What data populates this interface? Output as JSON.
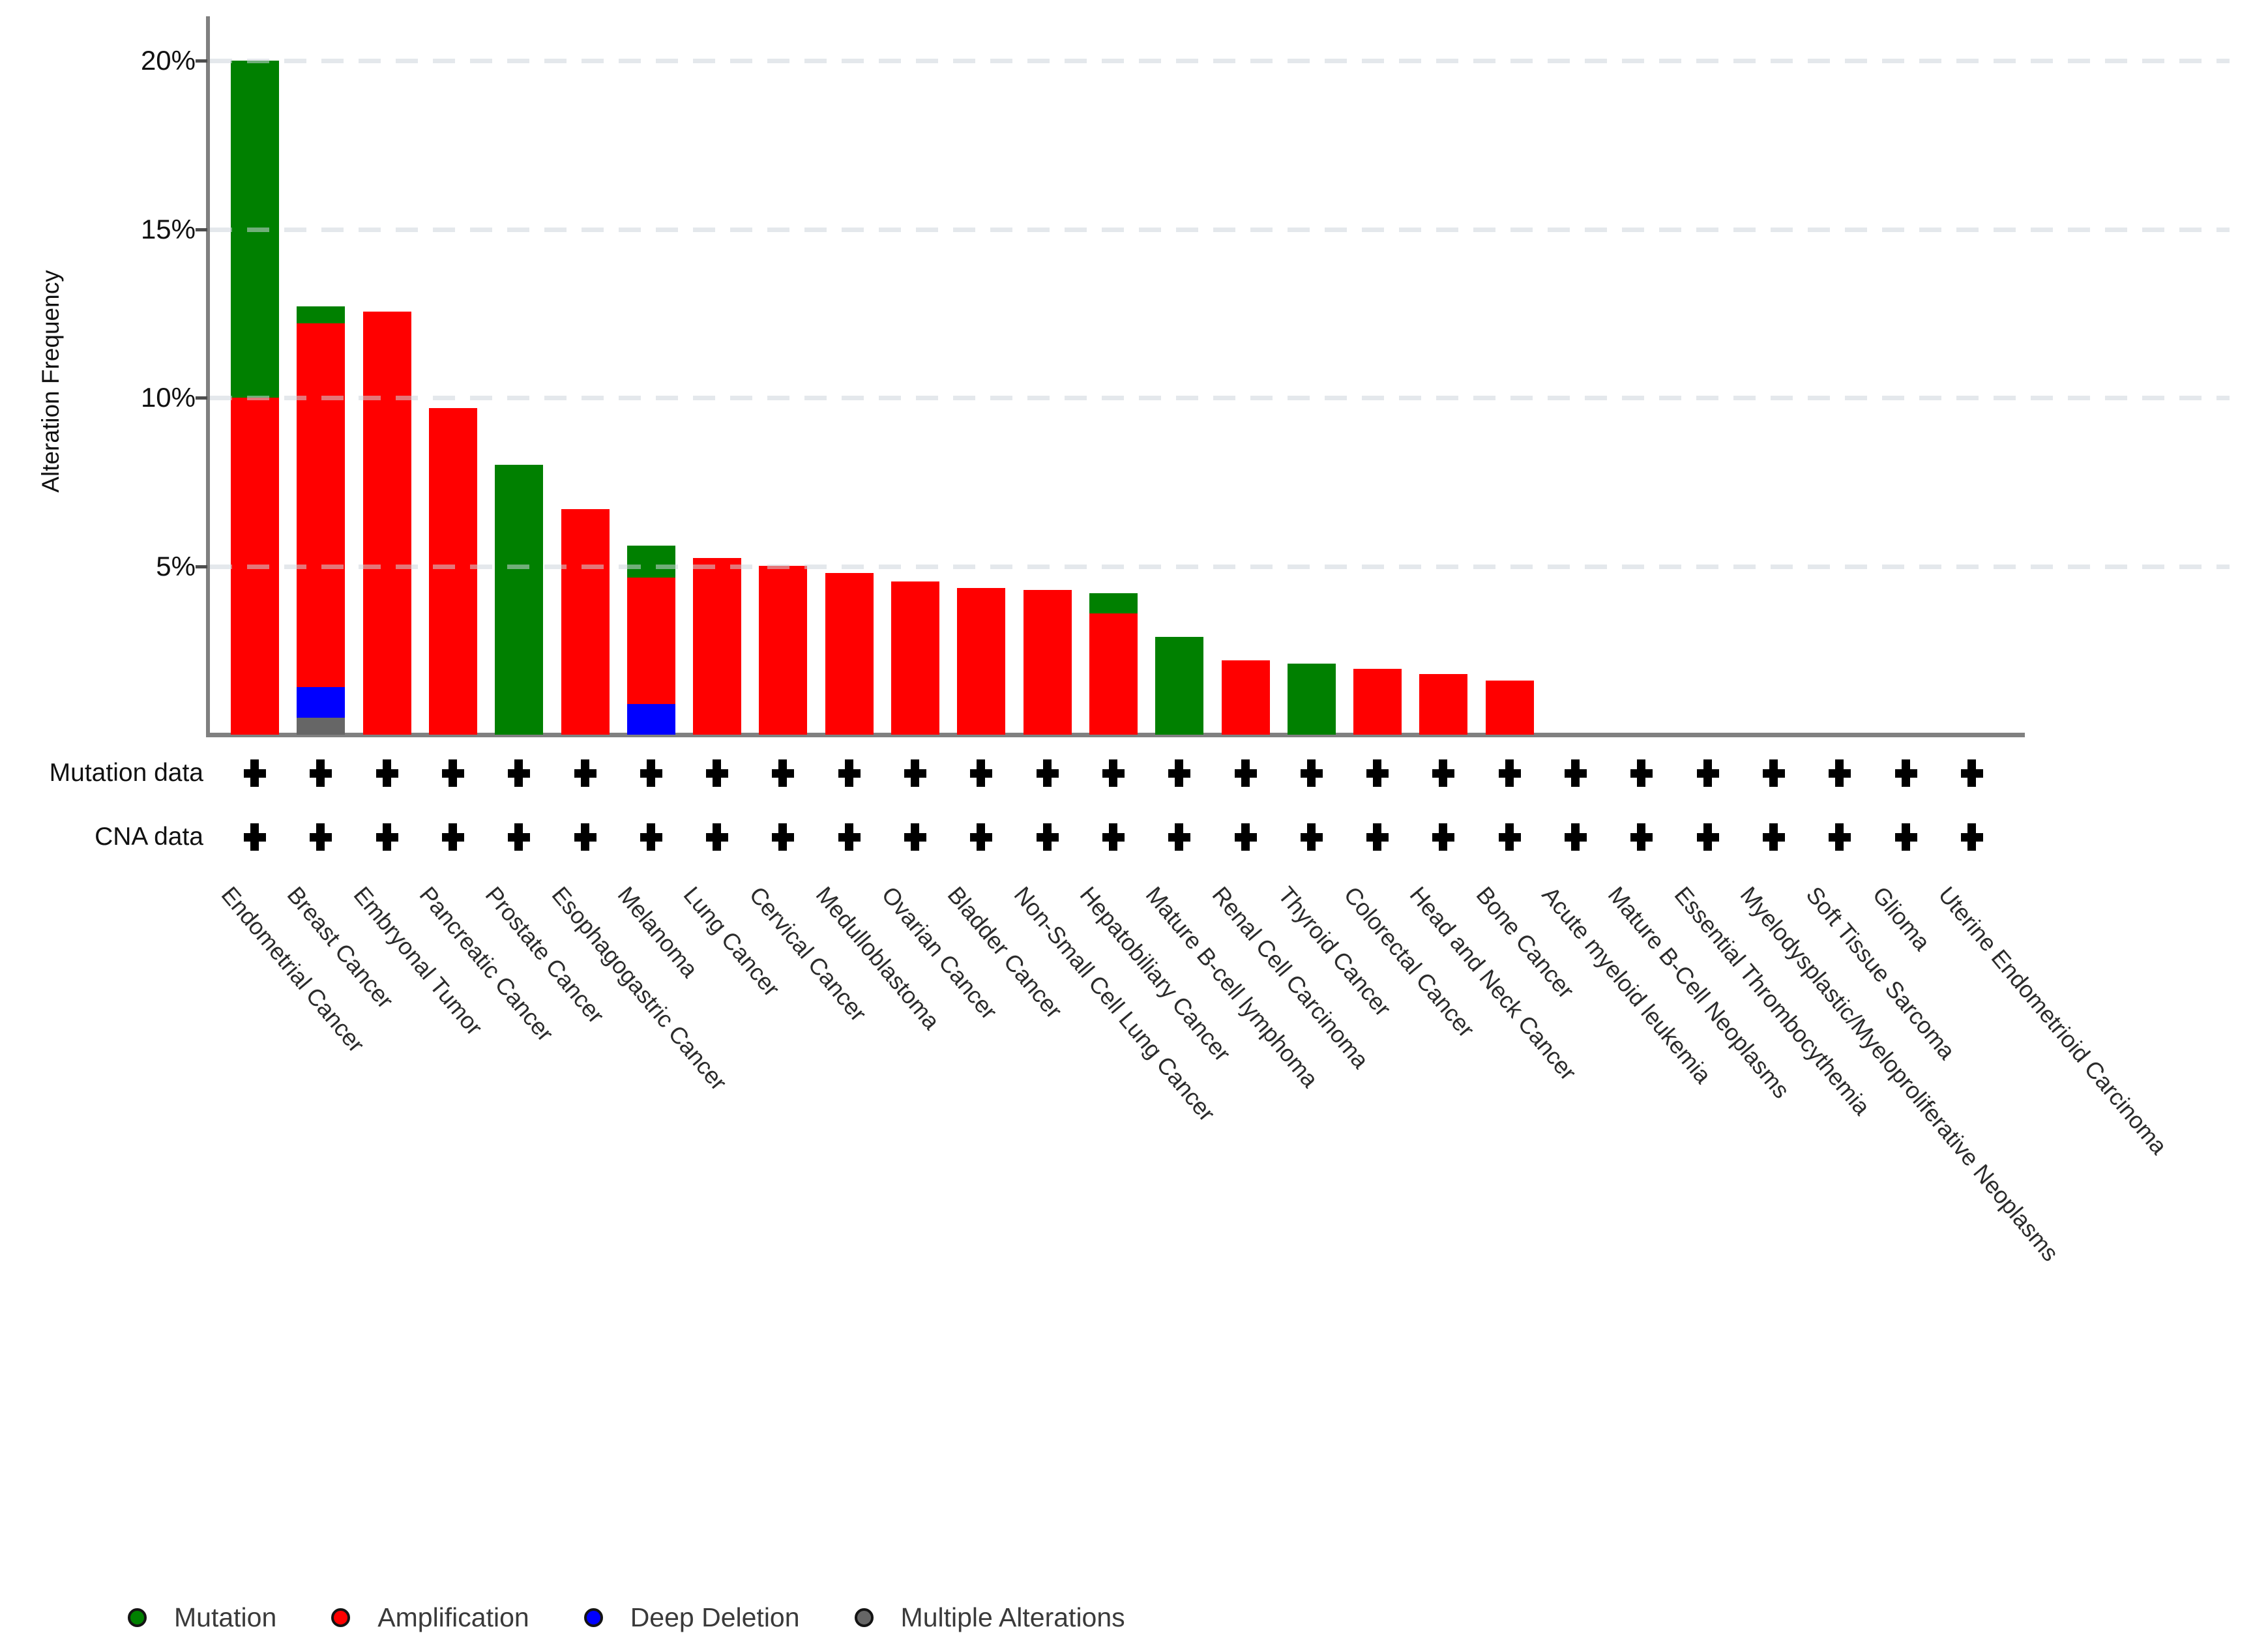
{
  "y_axis": {
    "title": "Alteration Frequency",
    "ticks": [
      {
        "label": "5%",
        "value": 5
      },
      {
        "label": "10%",
        "value": 10
      },
      {
        "label": "15%",
        "value": 15
      },
      {
        "label": "20%",
        "value": 20
      }
    ]
  },
  "tracks": {
    "mutation_label": "Mutation data",
    "cna_label": "CNA data",
    "plus_symbol": "plus"
  },
  "colors": {
    "mutation": "#008000",
    "amplification": "#ff0000",
    "deep_deletion": "#0000ff",
    "multiple_alterations": "#666666",
    "axis": "#808080",
    "gridline": "#e9edf0"
  },
  "chart_data": {
    "type": "bar",
    "stacked": true,
    "ylabel": "Alteration Frequency",
    "ylim": [
      0,
      21
    ],
    "yticks": [
      5,
      10,
      15,
      20
    ],
    "grid": "horizontal-dashed",
    "legend_position": "bottom-left",
    "stack_order_bottom_to_top": [
      "Multiple Alterations",
      "Deep Deletion",
      "Amplification",
      "Mutation"
    ],
    "categories": [
      "Endometrial Cancer",
      "Breast Cancer",
      "Embryonal Tumor",
      "Pancreatic Cancer",
      "Prostate Cancer",
      "Esophagogastric Cancer",
      "Melanoma",
      "Lung Cancer",
      "Cervical Cancer",
      "Medulloblastoma",
      "Ovarian Cancer",
      "Bladder Cancer",
      "Non-Small Cell Lung Cancer",
      "Hepatobiliary Cancer",
      "Mature B-cell lymphoma",
      "Renal Cell Carcinoma",
      "Thyroid Cancer",
      "Colorectal Cancer",
      "Head and Neck Cancer",
      "Bone Cancer",
      "Acute myeloid leukemia",
      "Mature B-Cell Neoplasms",
      "Essential Thrombocythemia",
      "Myelodysplastic/Myeloproliferative Neoplasms",
      "Soft Tissue Sarcoma",
      "Glioma",
      "Uterine Endometrioid Carcinoma"
    ],
    "series": [
      {
        "name": "Mutation",
        "color": "#008000",
        "values": [
          10.0,
          0.5,
          0,
          0,
          8.0,
          0,
          0.95,
          0,
          0,
          0,
          0,
          0,
          0,
          0.6,
          2.9,
          0,
          2.1,
          0,
          0,
          0,
          0,
          0,
          0,
          0,
          0,
          0,
          0
        ]
      },
      {
        "name": "Amplification",
        "color": "#ff0000",
        "values": [
          10.0,
          10.8,
          12.55,
          9.7,
          0,
          6.7,
          3.75,
          5.25,
          5.0,
          4.8,
          4.55,
          4.35,
          4.3,
          3.6,
          0,
          2.2,
          0,
          1.95,
          1.8,
          1.6,
          0,
          0,
          0,
          0,
          0,
          0,
          0
        ]
      },
      {
        "name": "Deep Deletion",
        "color": "#0000ff",
        "values": [
          0,
          0.9,
          0,
          0,
          0,
          0,
          0.9,
          0,
          0,
          0,
          0,
          0,
          0,
          0,
          0,
          0,
          0,
          0,
          0,
          0,
          0,
          0,
          0,
          0,
          0,
          0,
          0
        ]
      },
      {
        "name": "Multiple Alterations",
        "color": "#666666",
        "values": [
          0,
          0.5,
          0,
          0,
          0,
          0,
          0,
          0,
          0,
          0,
          0,
          0,
          0,
          0,
          0,
          0,
          0,
          0,
          0,
          0,
          0,
          0,
          0,
          0,
          0,
          0,
          0
        ]
      }
    ],
    "totals": [
      20.0,
      12.7,
      12.55,
      9.7,
      8.0,
      6.7,
      5.6,
      5.25,
      5.0,
      4.8,
      4.55,
      4.35,
      4.3,
      4.2,
      2.9,
      2.2,
      2.1,
      1.95,
      1.8,
      1.6,
      0,
      0,
      0,
      0,
      0,
      0,
      0
    ],
    "mutation_data": [
      true,
      true,
      true,
      true,
      true,
      true,
      true,
      true,
      true,
      true,
      true,
      true,
      true,
      true,
      true,
      true,
      true,
      true,
      true,
      true,
      true,
      true,
      true,
      true,
      true,
      true,
      true
    ],
    "cna_data": [
      true,
      true,
      true,
      true,
      true,
      true,
      true,
      true,
      true,
      true,
      true,
      true,
      true,
      true,
      true,
      true,
      true,
      true,
      true,
      true,
      true,
      true,
      true,
      true,
      true,
      true,
      true
    ],
    "legend": [
      {
        "label": "Mutation",
        "color": "#008000"
      },
      {
        "label": "Amplification",
        "color": "#ff0000"
      },
      {
        "label": "Deep Deletion",
        "color": "#0000ff"
      },
      {
        "label": "Multiple Alterations",
        "color": "#666666"
      }
    ]
  }
}
